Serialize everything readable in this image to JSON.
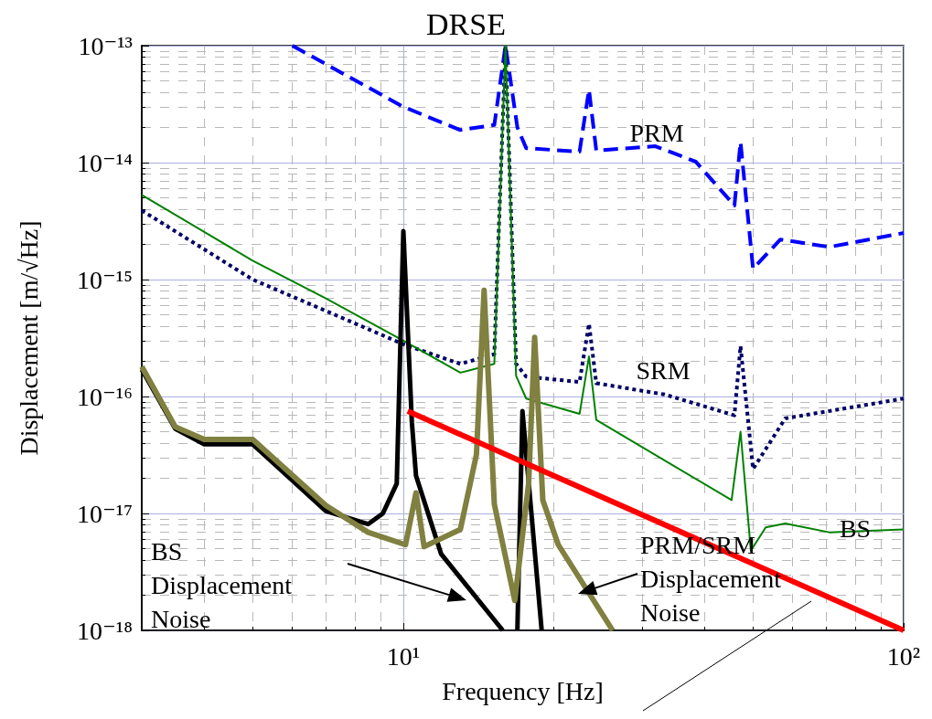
{
  "chart_data": {
    "type": "line",
    "title": "DRSE",
    "xlabel": "Frequency [Hz]",
    "ylabel": "Displacement [m/√Hz]",
    "log": "xy",
    "grid": true,
    "marker": "none",
    "xlim": [
      3,
      100
    ],
    "xticks": [
      {
        "value": 10,
        "label": "10¹"
      },
      {
        "value": 100,
        "label": "10²"
      }
    ],
    "ylim": [
      1e-18,
      1e-13
    ],
    "yticks": [
      {
        "value": 1e-18,
        "label": "10⁻¹⁸"
      },
      {
        "value": 1e-17,
        "label": "10⁻¹⁷"
      },
      {
        "value": 1e-16,
        "label": "10⁻¹⁶"
      },
      {
        "value": 1e-15,
        "label": "10⁻¹⁵"
      },
      {
        "value": 1e-14,
        "label": "10⁻¹⁴"
      },
      {
        "value": 1e-13,
        "label": "10⁻¹³"
      }
    ],
    "series": [
      {
        "color": "#0000ff",
        "line_style": "dashed",
        "x": [
          6,
          10,
          13,
          15.2,
          16,
          16.9,
          17.6,
          22.5,
          23.5,
          24.3,
          31.9,
          38.4,
          45.9,
          47.2,
          50,
          56.7,
          71,
          100
        ],
        "values": [
          1e-13,
          3e-14,
          1.9e-14,
          2.1e-14,
          1e-13,
          2e-14,
          1.33e-14,
          1.24e-14,
          4.2e-14,
          1.27e-14,
          1.38e-14,
          1.02e-14,
          4.3e-15,
          1.5e-14,
          1.24e-15,
          2.2e-15,
          1.9e-15,
          2.5e-15
        ]
      },
      {
        "color": "#000066",
        "line_style": "dotted",
        "x": [
          3,
          5,
          7,
          10,
          13,
          15.2,
          16,
          16.8,
          17.6,
          22.5,
          23.5,
          24.3,
          33.3,
          45.9,
          47.2,
          50,
          58,
          100
        ],
        "values": [
          3.9e-15,
          1e-15,
          5.4e-16,
          2.8e-16,
          1.9e-16,
          2.3e-16,
          1e-13,
          1.9e-16,
          1.48e-16,
          1.33e-16,
          4.2e-16,
          1.3e-16,
          1.04e-16,
          6.9e-17,
          2.7e-16,
          2.4e-17,
          6.5e-17,
          9.6e-17
        ]
      },
      {
        "color": "#008000",
        "line_style": "solid",
        "x": [
          3,
          5,
          7,
          10,
          13,
          15.2,
          16,
          16.8,
          17.6,
          22.5,
          23.5,
          24.3,
          45.3,
          47.2,
          49.5,
          53,
          58,
          71,
          100
        ],
        "values": [
          5.3e-15,
          1.45e-15,
          6.9e-16,
          3e-16,
          1.6e-16,
          1.9e-16,
          1e-13,
          1.5e-16,
          9.6e-17,
          7.1e-17,
          2.2e-16,
          6.3e-17,
          1.3e-17,
          5e-17,
          4.8e-18,
          7.6e-18,
          8.2e-18,
          6.9e-18,
          7.3e-18
        ]
      },
      {
        "color": "#000000",
        "line_style": "solid",
        "x": [
          3,
          3.5,
          4,
          5,
          7,
          8.5,
          9.1,
          9.7,
          10,
          10.4,
          10.6,
          11.9,
          15.8,
          16.5,
          16.9,
          17.3,
          18.9
        ],
        "values": [
          1.7e-16,
          5.3e-17,
          3.9e-17,
          3.9e-17,
          1.05e-17,
          8.1e-18,
          1e-17,
          1.8e-17,
          2.6e-15,
          6e-17,
          2.1e-17,
          4.5e-18,
          1e-18,
          null,
          1e-18,
          7.5e-17,
          1e-18
        ]
      },
      {
        "color": "#808040",
        "line_style": "solid",
        "x": [
          3,
          3.5,
          4,
          5,
          7,
          8.5,
          10.1,
          10.6,
          11,
          13,
          14,
          14.5,
          15.2,
          16.7,
          17.8,
          18.3,
          19,
          20.4,
          26.2
        ],
        "values": [
          1.8e-16,
          5.5e-17,
          4.3e-17,
          4.3e-17,
          1.17e-17,
          6.9e-18,
          5.4e-18,
          1.5e-17,
          5.2e-18,
          7.3e-18,
          3.2e-17,
          8.1e-16,
          1.2e-17,
          1.8e-18,
          1.8e-17,
          3.2e-16,
          1.3e-17,
          5.4e-18,
          1e-18
        ]
      },
      {
        "color": "#ff0000",
        "line_style": "solid",
        "x": [
          10.2,
          100
        ],
        "values": [
          7.5e-17,
          1e-18
        ]
      }
    ],
    "annotations": [
      "PRM",
      "SRM",
      "BS",
      "BS\nDisplacement\nNoise",
      "PRM/SRM\nDisplacement\nNoise"
    ]
  }
}
